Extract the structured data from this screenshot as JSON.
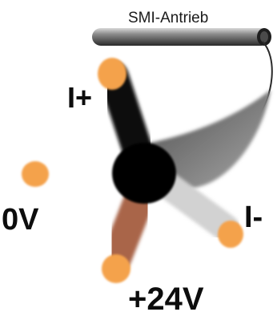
{
  "drive_label": "SMI-Antrieb",
  "wires": [
    {
      "id": "i-plus",
      "label": "I+",
      "color": "#0a0a0a"
    },
    {
      "id": "zero-v",
      "label": "0V",
      "color": "#1414e0"
    },
    {
      "id": "plus-24v",
      "label": "+24V",
      "color": "#a9654a"
    },
    {
      "id": "i-minus",
      "label": "I-",
      "color": "#d2d2d2"
    }
  ],
  "colors": {
    "cable_sheath": "#8a8a8a",
    "hub": "#000000",
    "conductor_tip": "#f4a24c",
    "tube": "#5e5e5e"
  }
}
